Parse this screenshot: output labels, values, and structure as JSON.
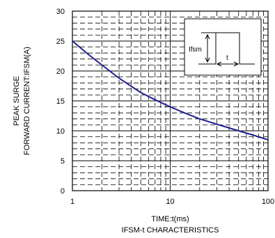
{
  "chart_data": {
    "type": "line",
    "title": "IFSM-t CHARACTERISTICS",
    "xlabel": "TIME:t(ms)",
    "ylabel": [
      "PEAK SURGE",
      "FORWARD CURRENT:IFSM(A)"
    ],
    "x_scale": "log",
    "xlim": [
      1,
      100
    ],
    "ylim": [
      0,
      30
    ],
    "x_ticks": [
      "1",
      "10",
      "100"
    ],
    "y_ticks": [
      "0",
      "5",
      "10",
      "15",
      "20",
      "25",
      "30"
    ],
    "grid": true,
    "series": [
      {
        "color": "#1f1f8f",
        "x": [
          1,
          1.5,
          2,
          3,
          5,
          7,
          10,
          15,
          20,
          30,
          50,
          70,
          100
        ],
        "y": [
          25,
          22.6,
          21,
          18.8,
          16.4,
          15.2,
          14,
          12.8,
          12,
          11.1,
          10,
          9.3,
          8.5
        ]
      }
    ],
    "inset": {
      "labels": {
        "ifsm": "Ifsm",
        "t": "t"
      }
    }
  }
}
